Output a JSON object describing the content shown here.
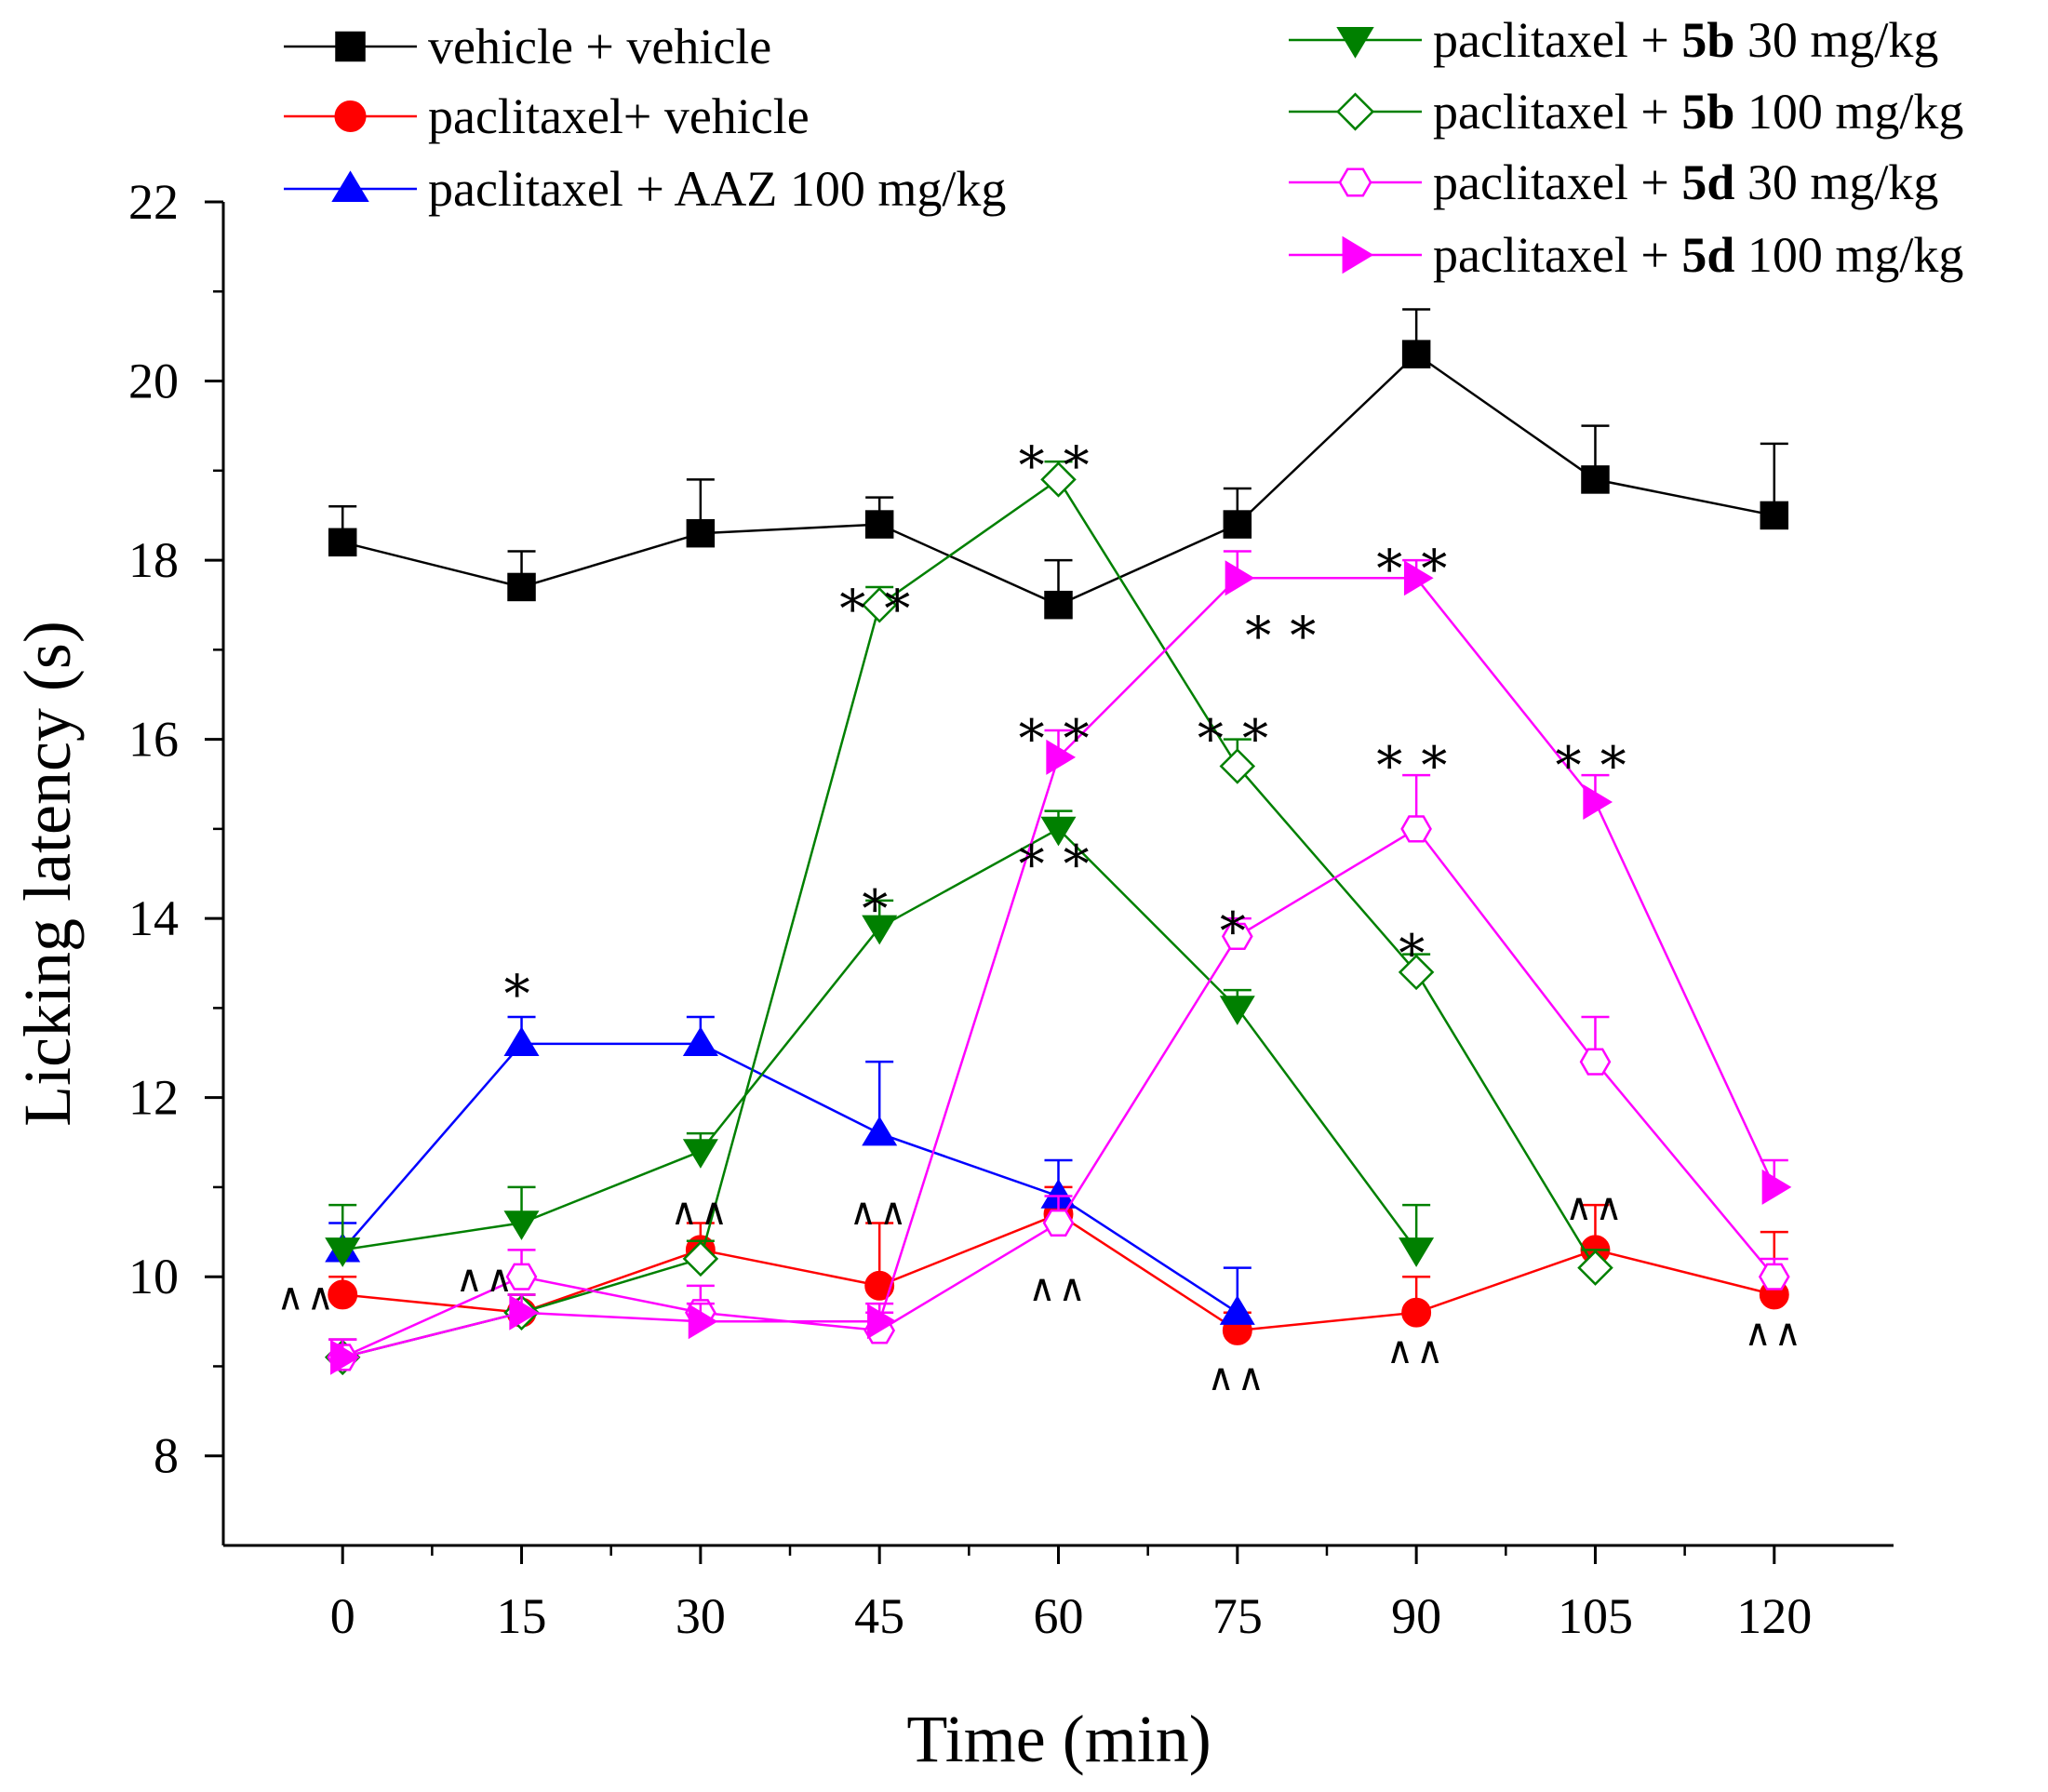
{
  "chart_data": {
    "type": "line",
    "xlabel": "Time (min)",
    "ylabel": "Licking latency (s)",
    "x": [
      0,
      15,
      30,
      45,
      60,
      75,
      90,
      105,
      120
    ],
    "x_tick_labels": [
      "0",
      "15",
      "30",
      "45",
      "60",
      "75",
      "90",
      "105",
      "120"
    ],
    "xlim": [
      -10,
      130
    ],
    "ylim": [
      7,
      22
    ],
    "y_ticks": [
      8,
      10,
      12,
      14,
      16,
      18,
      20,
      22
    ],
    "y_tick_labels": [
      "8",
      "10",
      "12",
      "14",
      "16",
      "18",
      "20",
      "22"
    ],
    "grid": false,
    "series": [
      {
        "name": "vehicle + vehicle",
        "legend": {
          "prefix": "vehicle + vehicle",
          "bold": "",
          "suffix": ""
        },
        "color": "#000000",
        "marker": "square",
        "filled": true,
        "values": [
          18.2,
          17.7,
          18.3,
          18.4,
          17.5,
          18.4,
          20.3,
          18.9,
          18.5
        ],
        "errors": [
          0.4,
          0.4,
          0.6,
          0.3,
          0.5,
          0.4,
          0.5,
          0.6,
          0.8
        ]
      },
      {
        "name": "paclitaxel+ vehicle",
        "legend": {
          "prefix": "paclitaxel+ vehicle",
          "bold": "",
          "suffix": ""
        },
        "color": "#ff0000",
        "marker": "circle",
        "filled": true,
        "values": [
          9.8,
          9.6,
          10.3,
          9.9,
          10.7,
          9.4,
          9.6,
          10.3,
          9.8
        ],
        "errors": [
          0.2,
          0.2,
          0.3,
          0.7,
          0.3,
          0.2,
          0.4,
          0.5,
          0.7
        ]
      },
      {
        "name": "paclitaxel + AAZ 100 mg/kg",
        "legend": {
          "prefix": "paclitaxel + AAZ 100 mg/kg",
          "bold": "",
          "suffix": ""
        },
        "color": "#0000ff",
        "marker": "triangle-up",
        "filled": true,
        "values": [
          10.3,
          12.6,
          12.6,
          11.6,
          10.9,
          9.6,
          null,
          null,
          null
        ],
        "errors": [
          0.3,
          0.3,
          0.3,
          0.8,
          0.4,
          0.5,
          null,
          null,
          null
        ]
      },
      {
        "name": "paclitaxel + 5b 30 mg/kg",
        "legend": {
          "prefix": "paclitaxel + ",
          "bold": "5b",
          "suffix": " 30 mg/kg"
        },
        "color": "#008000",
        "marker": "triangle-down",
        "filled": true,
        "values": [
          10.3,
          10.6,
          11.4,
          13.9,
          15.0,
          13.0,
          10.3,
          null,
          null
        ],
        "errors": [
          0.5,
          0.4,
          0.2,
          0.3,
          0.2,
          0.2,
          0.5,
          null,
          null
        ]
      },
      {
        "name": "paclitaxel + 5b 100 mg/kg",
        "legend": {
          "prefix": "paclitaxel + ",
          "bold": "5b",
          "suffix": " 100 mg/kg"
        },
        "color": "#008000",
        "marker": "diamond",
        "filled": false,
        "values": [
          9.1,
          9.6,
          10.2,
          17.5,
          18.9,
          15.7,
          13.4,
          10.1,
          null
        ],
        "errors": [
          0.2,
          0.2,
          0.2,
          0.2,
          0.2,
          0.3,
          0.2,
          0.2,
          null
        ]
      },
      {
        "name": "paclitaxel + 5d 30 mg/kg",
        "legend": {
          "prefix": "paclitaxel + ",
          "bold": "5d",
          "suffix": " 30 mg/kg"
        },
        "color": "#ff00ff",
        "marker": "hexagon",
        "filled": false,
        "values": [
          9.1,
          10.0,
          9.6,
          9.4,
          10.6,
          13.8,
          15.0,
          12.4,
          10.0
        ],
        "errors": [
          0.2,
          0.3,
          0.3,
          0.2,
          0.3,
          0.2,
          0.6,
          0.5,
          0.2
        ]
      },
      {
        "name": "paclitaxel + 5d 100 mg/kg",
        "legend": {
          "prefix": "paclitaxel + ",
          "bold": "5d",
          "suffix": " 100 mg/kg"
        },
        "color": "#ff00ff",
        "marker": "triangle-right",
        "filled": true,
        "values": [
          9.1,
          9.6,
          9.5,
          9.5,
          15.8,
          17.8,
          17.8,
          15.3,
          11.0
        ],
        "errors": [
          0.2,
          0.2,
          0.2,
          0.2,
          0.3,
          0.3,
          0.2,
          0.3,
          0.3
        ]
      }
    ],
    "annotations": [
      {
        "text": "^^",
        "x": -3,
        "y": 9.8
      },
      {
        "text": "^^",
        "x": 12,
        "y": 10.0
      },
      {
        "text": "^^",
        "x": 30,
        "y": 10.75
      },
      {
        "text": "^^",
        "x": 45,
        "y": 10.75
      },
      {
        "text": "^^",
        "x": 60,
        "y": 9.9
      },
      {
        "text": "^^",
        "x": 75,
        "y": 8.9
      },
      {
        "text": "^^",
        "x": 90,
        "y": 9.2
      },
      {
        "text": "^^",
        "x": 105,
        "y": 10.8
      },
      {
        "text": "^^",
        "x": 120,
        "y": 9.4
      },
      {
        "text": "*",
        "x": 15,
        "y": 13.3
      },
      {
        "text": "*",
        "x": 45,
        "y": 14.25
      },
      {
        "text": "*",
        "x": 75,
        "y": 14.0
      },
      {
        "text": "*",
        "x": 90,
        "y": 13.75
      },
      {
        "text": "**",
        "x": 45,
        "y": 17.6
      },
      {
        "text": "**",
        "x": 60,
        "y": 19.2
      },
      {
        "text": "**",
        "x": 60,
        "y": 16.15
      },
      {
        "text": "**",
        "x": 60,
        "y": 14.75
      },
      {
        "text": "**",
        "x": 79,
        "y": 17.3
      },
      {
        "text": "**",
        "x": 75,
        "y": 16.15
      },
      {
        "text": "**",
        "x": 90,
        "y": 15.85
      },
      {
        "text": "**",
        "x": 90,
        "y": 18.05
      },
      {
        "text": "**",
        "x": 105,
        "y": 15.85
      }
    ]
  }
}
